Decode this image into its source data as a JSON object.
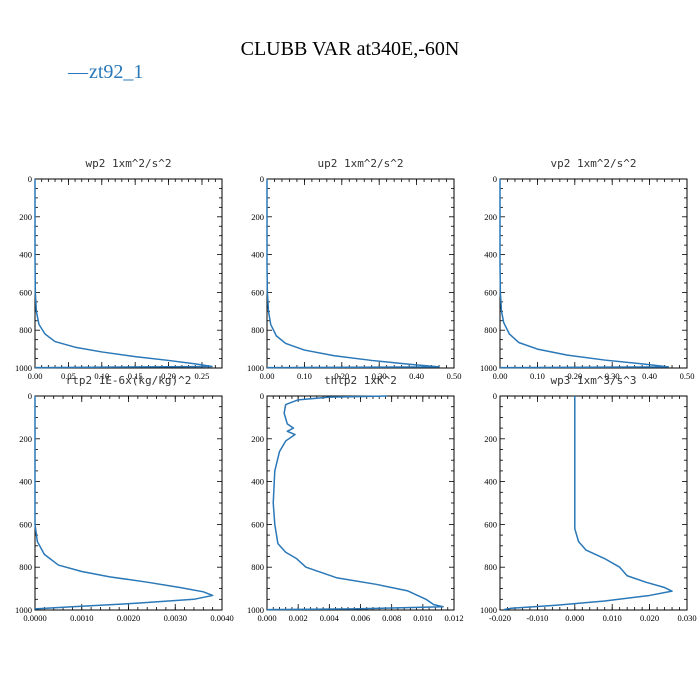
{
  "figure": {
    "title": "CLUBB VAR at340E,-60N",
    "legend": {
      "symbol": "—",
      "label": "zt92_1",
      "color": "#2a78b8"
    }
  },
  "chart_data": [
    {
      "type": "line",
      "title": "wp2  1xm^2/s^2",
      "xlim": [
        0,
        0.28
      ],
      "ylim": [
        0,
        1000
      ],
      "xticks": [
        0,
        0.05,
        0.1,
        0.15,
        0.2,
        0.25
      ],
      "xticklabels": [
        "0.00",
        "0.05",
        "0.10",
        "0.15",
        "0.20",
        "0.25"
      ],
      "yticks": [
        0,
        200,
        400,
        600,
        800,
        1000
      ],
      "series": [
        {
          "name": "zt92_1",
          "color": "#2a78b8",
          "points": [
            [
              0.0,
              0
            ],
            [
              0.0,
              400
            ],
            [
              0.0005,
              600
            ],
            [
              0.002,
              700
            ],
            [
              0.006,
              770
            ],
            [
              0.015,
              820
            ],
            [
              0.03,
              860
            ],
            [
              0.06,
              890
            ],
            [
              0.1,
              915
            ],
            [
              0.15,
              940
            ],
            [
              0.2,
              960
            ],
            [
              0.24,
              978
            ],
            [
              0.265,
              992
            ],
            [
              0.0,
              998
            ]
          ]
        }
      ]
    },
    {
      "type": "line",
      "title": "up2  1xm^2/s^2",
      "xlim": [
        0,
        0.5
      ],
      "ylim": [
        0,
        1000
      ],
      "xticks": [
        0,
        0.1,
        0.2,
        0.3,
        0.4,
        0.5
      ],
      "xticklabels": [
        "0.00",
        "0.10",
        "0.20",
        "0.30",
        "0.40",
        "0.50"
      ],
      "yticks": [
        0,
        200,
        400,
        600,
        800,
        1000
      ],
      "series": [
        {
          "name": "zt92_1",
          "color": "#2a78b8",
          "points": [
            [
              0.0,
              0
            ],
            [
              0.0,
              450
            ],
            [
              0.001,
              600
            ],
            [
              0.004,
              700
            ],
            [
              0.01,
              770
            ],
            [
              0.025,
              830
            ],
            [
              0.05,
              870
            ],
            [
              0.1,
              905
            ],
            [
              0.18,
              935
            ],
            [
              0.28,
              960
            ],
            [
              0.38,
              980
            ],
            [
              0.46,
              994
            ],
            [
              0.0,
              998
            ]
          ]
        }
      ]
    },
    {
      "type": "line",
      "title": "vp2  1xm^2/s^2",
      "xlim": [
        0,
        0.5
      ],
      "ylim": [
        0,
        1000
      ],
      "xticks": [
        0,
        0.1,
        0.2,
        0.3,
        0.4,
        0.5
      ],
      "xticklabels": [
        "0.00",
        "0.10",
        "0.20",
        "0.30",
        "0.40",
        "0.50"
      ],
      "yticks": [
        0,
        200,
        400,
        600,
        800,
        1000
      ],
      "series": [
        {
          "name": "zt92_1",
          "color": "#2a78b8",
          "points": [
            [
              0.0,
              0
            ],
            [
              0.0,
              450
            ],
            [
              0.001,
              600
            ],
            [
              0.004,
              700
            ],
            [
              0.01,
              760
            ],
            [
              0.025,
              820
            ],
            [
              0.05,
              865
            ],
            [
              0.1,
              900
            ],
            [
              0.18,
              932
            ],
            [
              0.28,
              958
            ],
            [
              0.38,
              978
            ],
            [
              0.45,
              994
            ],
            [
              0.0,
              998
            ]
          ]
        }
      ]
    },
    {
      "type": "line",
      "title": "rtp2  1E-6x(kg/kg)^2",
      "xlim": [
        0,
        0.004
      ],
      "ylim": [
        0,
        1000
      ],
      "xticks": [
        0,
        0.001,
        0.002,
        0.003,
        0.004
      ],
      "xticklabels": [
        "0.0000",
        "0.0010",
        "0.0020",
        "0.0030",
        "0.0040"
      ],
      "yticks": [
        0,
        200,
        400,
        600,
        800,
        1000
      ],
      "series": [
        {
          "name": "zt92_1",
          "color": "#2a78b8",
          "points": [
            [
              0.0,
              0
            ],
            [
              0.0,
              600
            ],
            [
              5e-05,
              680
            ],
            [
              0.0002,
              740
            ],
            [
              0.0005,
              790
            ],
            [
              0.001,
              820
            ],
            [
              0.0016,
              845
            ],
            [
              0.0024,
              870
            ],
            [
              0.0031,
              895
            ],
            [
              0.0036,
              915
            ],
            [
              0.0038,
              932
            ],
            [
              0.0034,
              950
            ],
            [
              0.0022,
              968
            ],
            [
              0.0008,
              985
            ],
            [
              0.0,
              995
            ]
          ]
        }
      ]
    },
    {
      "type": "line",
      "title": "thlp2  1xK^2",
      "xlim": [
        0,
        0.012
      ],
      "ylim": [
        0,
        1000
      ],
      "xticks": [
        0,
        0.002,
        0.004,
        0.006,
        0.008,
        0.01,
        0.012
      ],
      "xticklabels": [
        "0.000",
        "0.002",
        "0.004",
        "0.006",
        "0.008",
        "0.010",
        "0.012"
      ],
      "yticks": [
        0,
        200,
        400,
        600,
        800,
        1000
      ],
      "series": [
        {
          "name": "zt92_1",
          "color": "#2a78b8",
          "points": [
            [
              0.0077,
              0
            ],
            [
              0.004,
              5
            ],
            [
              0.002,
              18
            ],
            [
              0.0012,
              40
            ],
            [
              0.0011,
              80
            ],
            [
              0.0013,
              130
            ],
            [
              0.0017,
              150
            ],
            [
              0.0013,
              165
            ],
            [
              0.0018,
              180
            ],
            [
              0.0012,
              210
            ],
            [
              0.0008,
              260
            ],
            [
              0.0005,
              350
            ],
            [
              0.0004,
              500
            ],
            [
              0.0005,
              600
            ],
            [
              0.0007,
              690
            ],
            [
              0.0012,
              730
            ],
            [
              0.0019,
              760
            ],
            [
              0.0025,
              800
            ],
            [
              0.0045,
              850
            ],
            [
              0.007,
              880
            ],
            [
              0.009,
              910
            ],
            [
              0.0102,
              950
            ],
            [
              0.0107,
              975
            ],
            [
              0.0113,
              985
            ],
            [
              0.0055,
              995
            ],
            [
              0.0,
              998
            ]
          ]
        }
      ]
    },
    {
      "type": "line",
      "title": "wp3  1xm^3/s^3",
      "xlim": [
        -0.02,
        0.03
      ],
      "ylim": [
        0,
        1000
      ],
      "xticks": [
        -0.02,
        -0.01,
        0,
        0.01,
        0.02,
        0.03
      ],
      "xticklabels": [
        "-0.020",
        "-0.010",
        "0.000",
        "0.010",
        "0.020",
        "0.030"
      ],
      "yticks": [
        0,
        200,
        400,
        600,
        800,
        1000
      ],
      "series": [
        {
          "name": "zt92_1",
          "color": "#2a78b8",
          "points": [
            [
              0.0,
              0
            ],
            [
              0.0,
              400
            ],
            [
              0.0,
              620
            ],
            [
              0.001,
              680
            ],
            [
              0.003,
              720
            ],
            [
              0.008,
              760
            ],
            [
              0.012,
              800
            ],
            [
              0.014,
              840
            ],
            [
              0.019,
              870
            ],
            [
              0.024,
              895
            ],
            [
              0.026,
              912
            ],
            [
              0.02,
              932
            ],
            [
              0.008,
              958
            ],
            [
              -0.005,
              978
            ],
            [
              -0.017,
              992
            ],
            [
              -0.019,
              998
            ]
          ]
        }
      ]
    }
  ]
}
